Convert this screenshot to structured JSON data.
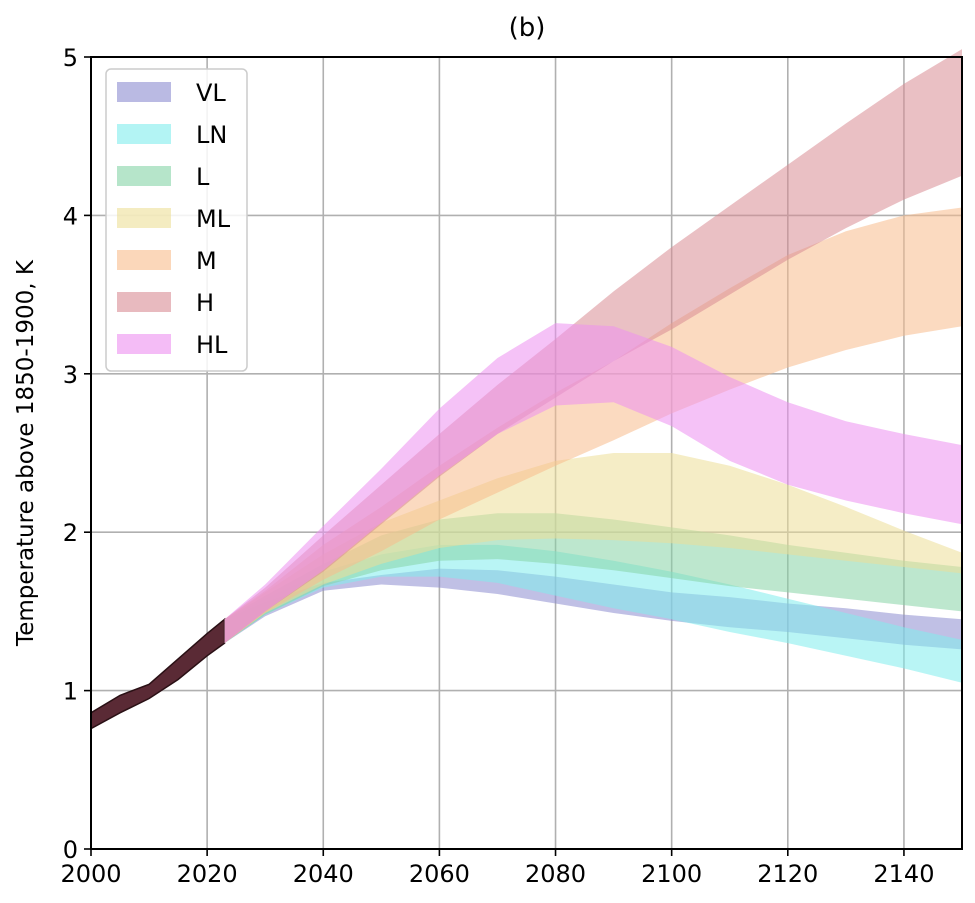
{
  "chart_data": {
    "type": "area",
    "title": "(b)",
    "xlabel": "",
    "ylabel": "Temperature above 1850-1900, K",
    "xlim": [
      2000,
      2150
    ],
    "ylim": [
      0,
      5
    ],
    "xticks": [
      2000,
      2020,
      2040,
      2060,
      2080,
      2100,
      2120,
      2140
    ],
    "yticks": [
      0,
      1,
      2,
      3,
      4,
      5
    ],
    "grid": true,
    "legend_position": "top-left",
    "historical": {
      "x": [
        2000,
        2005,
        2010,
        2015,
        2020,
        2023
      ],
      "lower": [
        0.76,
        0.86,
        0.95,
        1.07,
        1.22,
        1.3
      ],
      "upper": [
        0.86,
        0.97,
        1.04,
        1.2,
        1.36,
        1.45
      ],
      "color": "#5a2a35"
    },
    "series": [
      {
        "name": "VL",
        "color": "#8c8cd0",
        "x": [
          2023,
          2030,
          2040,
          2050,
          2060,
          2070,
          2080,
          2090,
          2100,
          2110,
          2120,
          2130,
          2140,
          2150
        ],
        "lower": [
          1.3,
          1.47,
          1.63,
          1.67,
          1.65,
          1.61,
          1.55,
          1.49,
          1.44,
          1.4,
          1.37,
          1.33,
          1.29,
          1.26
        ],
        "upper": [
          1.45,
          1.56,
          1.68,
          1.73,
          1.77,
          1.76,
          1.72,
          1.67,
          1.62,
          1.59,
          1.55,
          1.52,
          1.48,
          1.45
        ]
      },
      {
        "name": "LN",
        "color": "#80ecec",
        "x": [
          2023,
          2030,
          2040,
          2050,
          2060,
          2070,
          2080,
          2090,
          2100,
          2110,
          2120,
          2130,
          2140,
          2150
        ],
        "lower": [
          1.3,
          1.48,
          1.65,
          1.72,
          1.72,
          1.68,
          1.6,
          1.52,
          1.45,
          1.37,
          1.3,
          1.22,
          1.14,
          1.05
        ],
        "upper": [
          1.45,
          1.58,
          1.75,
          1.86,
          1.92,
          1.92,
          1.88,
          1.82,
          1.75,
          1.67,
          1.58,
          1.49,
          1.4,
          1.32
        ]
      },
      {
        "name": "L",
        "color": "#86d4a6",
        "x": [
          2023,
          2030,
          2040,
          2050,
          2060,
          2070,
          2080,
          2090,
          2100,
          2110,
          2120,
          2130,
          2140,
          2150
        ],
        "lower": [
          1.3,
          1.48,
          1.66,
          1.76,
          1.82,
          1.83,
          1.8,
          1.76,
          1.71,
          1.66,
          1.62,
          1.58,
          1.54,
          1.5
        ],
        "upper": [
          1.45,
          1.6,
          1.8,
          1.98,
          2.08,
          2.12,
          2.12,
          2.08,
          2.03,
          1.98,
          1.92,
          1.87,
          1.82,
          1.78
        ]
      },
      {
        "name": "ML",
        "color": "#ecdf98",
        "x": [
          2023,
          2030,
          2040,
          2050,
          2060,
          2070,
          2080,
          2090,
          2100,
          2110,
          2120,
          2130,
          2140,
          2150
        ],
        "lower": [
          1.3,
          1.49,
          1.67,
          1.8,
          1.9,
          1.95,
          1.96,
          1.95,
          1.93,
          1.9,
          1.86,
          1.82,
          1.78,
          1.74
        ],
        "upper": [
          1.45,
          1.62,
          1.86,
          2.06,
          2.2,
          2.34,
          2.45,
          2.5,
          2.5,
          2.42,
          2.3,
          2.16,
          2.01,
          1.87
        ]
      },
      {
        "name": "M",
        "color": "#f8bc8c",
        "x": [
          2023,
          2030,
          2040,
          2050,
          2060,
          2070,
          2080,
          2090,
          2100,
          2110,
          2120,
          2130,
          2140,
          2150
        ],
        "lower": [
          1.3,
          1.49,
          1.7,
          1.88,
          2.08,
          2.25,
          2.42,
          2.58,
          2.75,
          2.9,
          3.04,
          3.15,
          3.24,
          3.3
        ],
        "upper": [
          1.45,
          1.63,
          1.92,
          2.16,
          2.42,
          2.66,
          2.88,
          3.08,
          3.32,
          3.54,
          3.75,
          3.9,
          4.0,
          4.05
        ]
      },
      {
        "name": "H",
        "color": "#d88c94",
        "x": [
          2023,
          2030,
          2040,
          2050,
          2060,
          2070,
          2080,
          2090,
          2100,
          2110,
          2120,
          2130,
          2140,
          2150
        ],
        "lower": [
          1.3,
          1.5,
          1.75,
          2.05,
          2.35,
          2.62,
          2.85,
          3.08,
          3.28,
          3.5,
          3.72,
          3.92,
          4.1,
          4.25
        ],
        "upper": [
          1.45,
          1.65,
          1.98,
          2.3,
          2.62,
          2.93,
          3.22,
          3.52,
          3.8,
          4.06,
          4.32,
          4.58,
          4.83,
          5.05
        ]
      },
      {
        "name": "HL",
        "color": "#ec90f0",
        "x": [
          2023,
          2030,
          2040,
          2050,
          2060,
          2070,
          2080,
          2090,
          2100,
          2110,
          2120,
          2130,
          2140,
          2150
        ],
        "lower": [
          1.3,
          1.5,
          1.76,
          2.06,
          2.36,
          2.62,
          2.8,
          2.82,
          2.67,
          2.45,
          2.3,
          2.2,
          2.12,
          2.05
        ],
        "upper": [
          1.45,
          1.67,
          2.04,
          2.4,
          2.78,
          3.1,
          3.32,
          3.3,
          3.17,
          2.98,
          2.82,
          2.7,
          2.62,
          2.55
        ]
      }
    ]
  }
}
